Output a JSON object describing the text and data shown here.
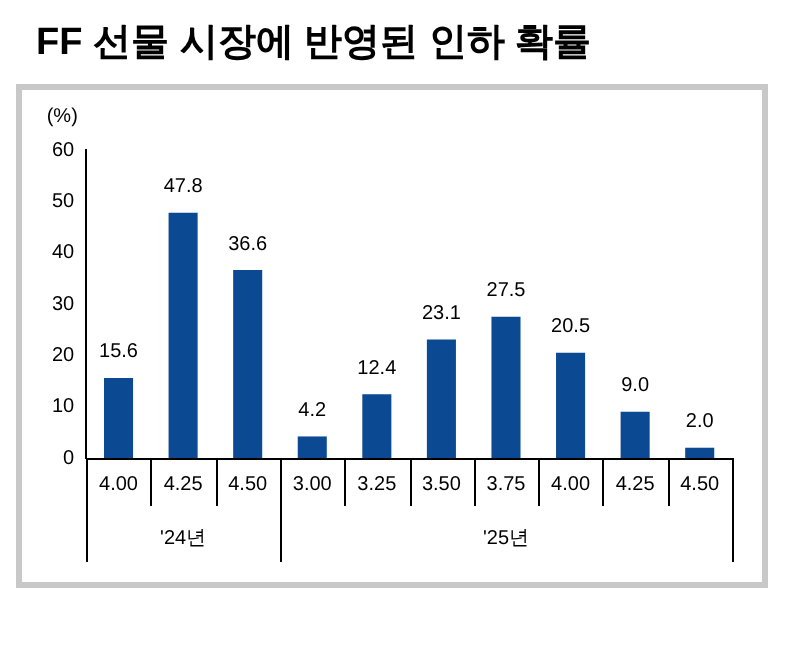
{
  "chart_data": {
    "type": "bar",
    "title": "FF 선물 시장에 반영된 인하 확률",
    "ylabel": "(%)",
    "categories": [
      "4.00",
      "4.25",
      "4.50",
      "3.00",
      "3.25",
      "3.50",
      "3.75",
      "4.00",
      "4.25",
      "4.50"
    ],
    "values": [
      15.6,
      47.8,
      36.6,
      4.2,
      12.4,
      23.1,
      27.5,
      20.5,
      9.0,
      2.0
    ],
    "value_labels": [
      "15.6",
      "47.8",
      "36.6",
      "4.2",
      "12.4",
      "23.1",
      "27.5",
      "20.5",
      "9.0",
      "2.0"
    ],
    "color": "#0b4a92",
    "ylim": [
      0,
      60
    ],
    "yticks": [
      0,
      10,
      20,
      30,
      40,
      50,
      60
    ],
    "grid": false,
    "legend": false,
    "annotations": [
      "'24년",
      "'25년"
    ]
  }
}
